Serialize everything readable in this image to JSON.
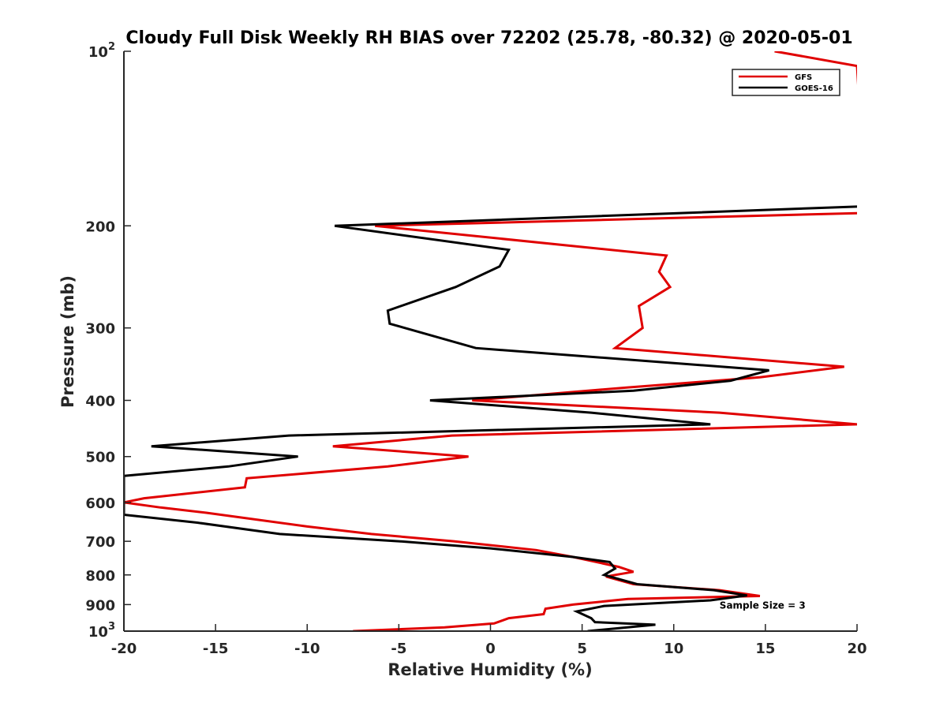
{
  "chart_data": {
    "type": "line",
    "title": "Cloudy Full Disk Weekly RH BIAS over 72202 (25.78, -80.32) @ 2020-05-01",
    "xlabel": "Relative Humidity (%)",
    "ylabel": "Pressure (mb)",
    "xlim": [
      -20,
      20
    ],
    "ylim": [
      100,
      1000
    ],
    "y_scale": "log",
    "y_reversed": true,
    "grid": false,
    "legend_position": "top-right",
    "x_ticks": [
      {
        "value": -20,
        "label": "-20"
      },
      {
        "value": -15,
        "label": "-15"
      },
      {
        "value": -10,
        "label": "-10"
      },
      {
        "value": -5,
        "label": "-5"
      },
      {
        "value": 0,
        "label": "0"
      },
      {
        "value": 5,
        "label": "5"
      },
      {
        "value": 10,
        "label": "10"
      },
      {
        "value": 15,
        "label": "15"
      },
      {
        "value": 20,
        "label": "20"
      }
    ],
    "y_ticks": [
      {
        "value": 100,
        "base": "10",
        "exp": "2"
      },
      {
        "value": 200,
        "label": "200"
      },
      {
        "value": 300,
        "label": "300"
      },
      {
        "value": 400,
        "label": "400"
      },
      {
        "value": 500,
        "label": "500"
      },
      {
        "value": 600,
        "label": "600"
      },
      {
        "value": 700,
        "label": "700"
      },
      {
        "value": 800,
        "label": "800"
      },
      {
        "value": 900,
        "label": "900"
      },
      {
        "value": 1000,
        "base": "10",
        "exp": "3"
      }
    ],
    "series": [
      {
        "name": "GFS",
        "color": "#e00000",
        "points": [
          {
            "x": 15.5,
            "y": 100
          },
          {
            "x": 20.0,
            "y": 106
          },
          {
            "x": 20.5,
            "y": 190
          },
          {
            "x": -6.3,
            "y": 200
          },
          {
            "x": 9.6,
            "y": 225
          },
          {
            "x": 9.2,
            "y": 240
          },
          {
            "x": 9.8,
            "y": 255
          },
          {
            "x": 8.1,
            "y": 275
          },
          {
            "x": 8.3,
            "y": 300
          },
          {
            "x": 6.8,
            "y": 325
          },
          {
            "x": 19.3,
            "y": 350
          },
          {
            "x": 14.7,
            "y": 365
          },
          {
            "x": 7.5,
            "y": 380
          },
          {
            "x": -1.0,
            "y": 400
          },
          {
            "x": 12.5,
            "y": 420
          },
          {
            "x": 20.0,
            "y": 440
          },
          {
            "x": -2.1,
            "y": 460
          },
          {
            "x": -8.6,
            "y": 480
          },
          {
            "x": -1.2,
            "y": 500
          },
          {
            "x": -5.6,
            "y": 520
          },
          {
            "x": -13.3,
            "y": 545
          },
          {
            "x": -13.4,
            "y": 565
          },
          {
            "x": -18.9,
            "y": 590
          },
          {
            "x": -20.0,
            "y": 600
          },
          {
            "x": -18.0,
            "y": 612
          },
          {
            "x": -15.5,
            "y": 625
          },
          {
            "x": -10.0,
            "y": 660
          },
          {
            "x": -6.5,
            "y": 680
          },
          {
            "x": -2.0,
            "y": 700
          },
          {
            "x": 2.5,
            "y": 725
          },
          {
            "x": 4.5,
            "y": 745
          },
          {
            "x": 7.0,
            "y": 775
          },
          {
            "x": 7.8,
            "y": 790
          },
          {
            "x": 6.3,
            "y": 805
          },
          {
            "x": 7.8,
            "y": 830
          },
          {
            "x": 12.5,
            "y": 850
          },
          {
            "x": 14.7,
            "y": 870
          },
          {
            "x": 7.5,
            "y": 880
          },
          {
            "x": 4.5,
            "y": 900
          },
          {
            "x": 3.0,
            "y": 915
          },
          {
            "x": 2.9,
            "y": 935
          },
          {
            "x": 1.0,
            "y": 950
          },
          {
            "x": 0.2,
            "y": 970
          },
          {
            "x": -2.5,
            "y": 985
          },
          {
            "x": -7.5,
            "y": 1000
          }
        ]
      },
      {
        "name": "GOES-16",
        "color": "#000000",
        "points": [
          {
            "x": 20.5,
            "y": 185
          },
          {
            "x": -8.5,
            "y": 200
          },
          {
            "x": 1.0,
            "y": 220
          },
          {
            "x": 0.5,
            "y": 235
          },
          {
            "x": -1.9,
            "y": 255
          },
          {
            "x": -5.6,
            "y": 280
          },
          {
            "x": -5.5,
            "y": 295
          },
          {
            "x": -0.8,
            "y": 325
          },
          {
            "x": 15.2,
            "y": 355
          },
          {
            "x": 13.1,
            "y": 370
          },
          {
            "x": 7.8,
            "y": 385
          },
          {
            "x": -3.3,
            "y": 400
          },
          {
            "x": 5.5,
            "y": 420
          },
          {
            "x": 12.0,
            "y": 440
          },
          {
            "x": -11.0,
            "y": 460
          },
          {
            "x": -18.5,
            "y": 480
          },
          {
            "x": -10.5,
            "y": 500
          },
          {
            "x": -14.3,
            "y": 520
          },
          {
            "x": -20.0,
            "y": 540
          },
          {
            "x": -20.0,
            "y": 630
          },
          {
            "x": -16.0,
            "y": 650
          },
          {
            "x": -11.5,
            "y": 680
          },
          {
            "x": -5.0,
            "y": 700
          },
          {
            "x": 0.0,
            "y": 720
          },
          {
            "x": 4.5,
            "y": 745
          },
          {
            "x": 6.5,
            "y": 760
          },
          {
            "x": 6.8,
            "y": 780
          },
          {
            "x": 6.2,
            "y": 800
          },
          {
            "x": 8.0,
            "y": 830
          },
          {
            "x": 12.2,
            "y": 850
          },
          {
            "x": 14.0,
            "y": 868
          },
          {
            "x": 12.0,
            "y": 885
          },
          {
            "x": 6.2,
            "y": 905
          },
          {
            "x": 4.7,
            "y": 925
          },
          {
            "x": 5.5,
            "y": 950
          },
          {
            "x": 5.7,
            "y": 965
          },
          {
            "x": 9.0,
            "y": 975
          },
          {
            "x": 5.3,
            "y": 1000
          }
        ]
      }
    ],
    "annotations": [
      {
        "text": "Sample Size = 3",
        "x": 12.5,
        "y": 900
      }
    ]
  }
}
